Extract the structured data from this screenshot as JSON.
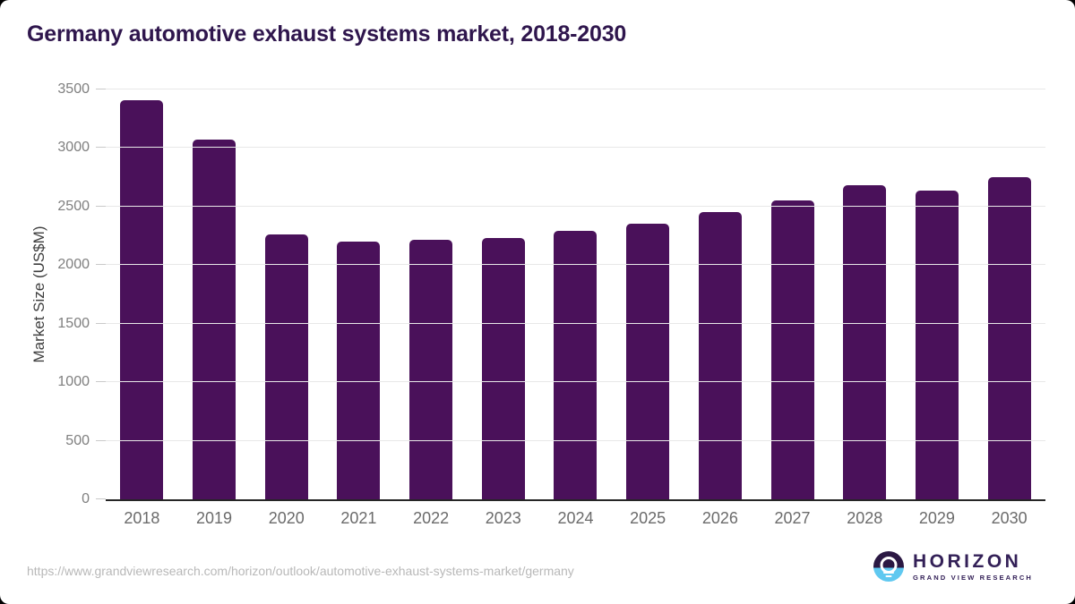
{
  "page": {
    "title": "Germany automotive exhaust systems market, 2018-2030"
  },
  "chart_data": {
    "type": "bar",
    "title": "Germany automotive exhaust systems market, 2018-2030",
    "categories": [
      "2018",
      "2019",
      "2020",
      "2021",
      "2022",
      "2023",
      "2024",
      "2025",
      "2026",
      "2027",
      "2028",
      "2029",
      "2030"
    ],
    "values": [
      3410,
      3070,
      2260,
      2200,
      2215,
      2235,
      2290,
      2355,
      2450,
      2555,
      2680,
      2640,
      2750
    ],
    "xlabel": "",
    "ylabel": "Market Size (US$M)",
    "ylim": [
      0,
      3500
    ],
    "yticks": [
      0,
      500,
      1000,
      1500,
      2000,
      2500,
      3000,
      3500
    ],
    "grid": "horizontal",
    "legend": "none",
    "bar_color": "#4a115a"
  },
  "footer": {
    "source_url": "https://www.grandviewresearch.com/horizon/outlook/automotive-exhaust-systems-market/germany",
    "logo": {
      "brand": "HORIZON",
      "tagline": "GRAND VIEW RESEARCH"
    }
  },
  "colors": {
    "bar": "#4a115a",
    "title_text": "#2f164d",
    "gridline": "#e8e8e8",
    "axis_line": "#262626",
    "tick_text": "#7f7f7f",
    "xlabel_text": "#6b6b6b",
    "url_text": "#b8b8b8",
    "logo_dark": "#2b1843",
    "logo_blue": "#5fc8f0"
  }
}
